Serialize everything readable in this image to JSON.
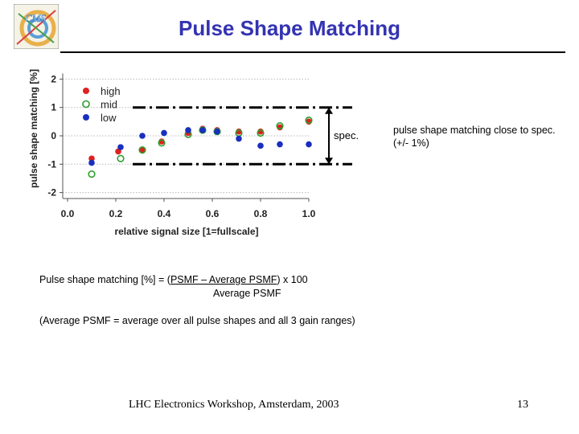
{
  "title": "Pulse Shape Matching",
  "logo": {
    "text": "CMS",
    "accent": "#3a7fc4"
  },
  "chart_data": {
    "type": "scatter",
    "xlabel": "relative signal size [1=fullscale]",
    "ylabel": "pulse shape matching [%]",
    "xlim": [
      0.0,
      1.0
    ],
    "ylim": [
      -2.2,
      2.2
    ],
    "xticks": [
      "0.0",
      "0.2",
      "0.4",
      "0.6",
      "0.8",
      "1.0"
    ],
    "xtick_values": [
      0.0,
      0.2,
      0.4,
      0.6,
      0.8,
      1.0
    ],
    "yticks": [
      "2",
      "1",
      "0",
      "-1",
      "-2"
    ],
    "ytick_values": [
      2,
      1,
      0,
      -1,
      -2
    ],
    "grid": true,
    "legend": "top-left",
    "spec_band": {
      "label": "spec.",
      "lower": -1,
      "upper": 1
    },
    "series": [
      {
        "name": "high",
        "marker": "filled",
        "color": "#e02020",
        "x": [
          0.1,
          0.21,
          0.31,
          0.39,
          0.5,
          0.56,
          0.62,
          0.71,
          0.8,
          0.88,
          1.0
        ],
        "y": [
          -0.8,
          -0.55,
          -0.5,
          -0.2,
          0.1,
          0.25,
          0.2,
          0.15,
          0.15,
          0.3,
          0.5
        ]
      },
      {
        "name": "mid",
        "marker": "open",
        "color": "#2e9e2e",
        "x": [
          0.1,
          0.22,
          0.31,
          0.39,
          0.5,
          0.56,
          0.62,
          0.71,
          0.8,
          0.88,
          1.0
        ],
        "y": [
          -1.35,
          -0.8,
          -0.5,
          -0.25,
          0.05,
          0.2,
          0.15,
          0.1,
          0.1,
          0.35,
          0.55
        ]
      },
      {
        "name": "low",
        "marker": "filled",
        "color": "#1a2fbf",
        "x": [
          0.1,
          0.22,
          0.31,
          0.4,
          0.5,
          0.56,
          0.62,
          0.71,
          0.8,
          0.88,
          1.0
        ],
        "y": [
          -0.95,
          -0.4,
          0.0,
          0.1,
          0.2,
          0.2,
          0.15,
          -0.1,
          -0.35,
          -0.3,
          -0.3
        ]
      }
    ]
  },
  "spec_note": "pulse shape matching close to spec. (+/- 1%)",
  "formula": {
    "prefix": "Pulse shape matching [%] = (",
    "numerator": "PSMF – Average PSMF",
    "suffix": ") x 100",
    "denominator": "Average PSMF"
  },
  "avg_note": "(Average PSMF = average over all pulse shapes and all 3 gain ranges)",
  "footer": "LHC Electronics Workshop, Amsterdam, 2003",
  "page_number": "13"
}
